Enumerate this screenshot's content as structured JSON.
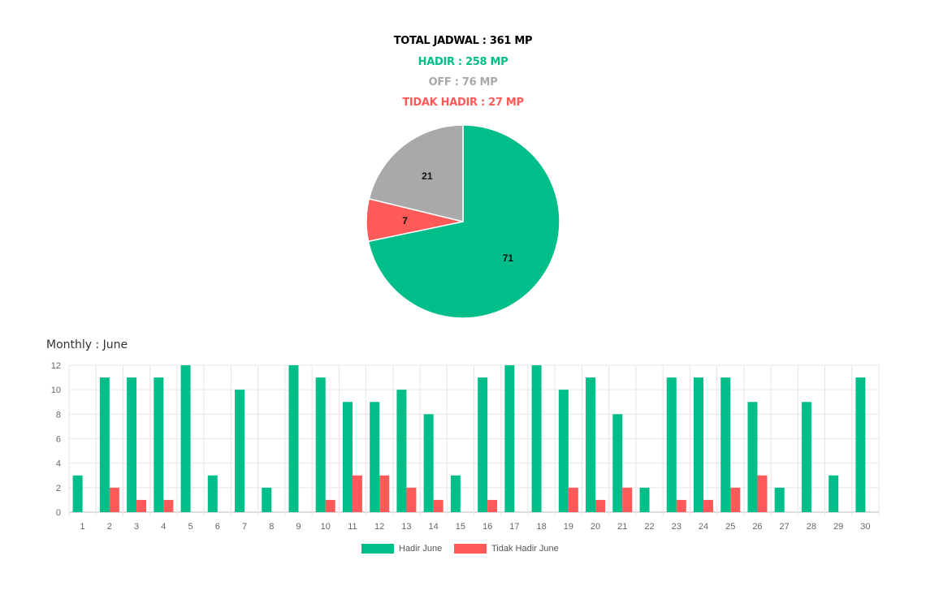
{
  "summary": {
    "total": "TOTAL JADWAL : 361 MP",
    "hadir": "HADIR : 258 MP",
    "off": "OFF : 76 MP",
    "tidak_hadir": "TIDAK HADIR : 27 MP"
  },
  "colors": {
    "total": "#000000",
    "hadir": "#00be8a",
    "off": "#a9a9a9",
    "tidak_hadir": "#ff5a5a"
  },
  "monthly_title": "Monthly : June",
  "chart_data": [
    {
      "type": "pie",
      "title": "",
      "slices": [
        {
          "label": "Hadir",
          "value": 71,
          "color": "#00be8a"
        },
        {
          "label": "Tidak Hadir",
          "value": 7,
          "color": "#ff5a5a"
        },
        {
          "label": "Off",
          "value": 21,
          "color": "#a9a9a9"
        }
      ]
    },
    {
      "type": "bar",
      "title": "Monthly : June",
      "categories": [
        "1",
        "2",
        "3",
        "4",
        "5",
        "6",
        "7",
        "8",
        "9",
        "10",
        "11",
        "12",
        "13",
        "14",
        "15",
        "16",
        "17",
        "18",
        "19",
        "20",
        "21",
        "22",
        "23",
        "24",
        "25",
        "26",
        "27",
        "28",
        "29",
        "30"
      ],
      "series": [
        {
          "name": "Hadir June",
          "color": "#00be8a",
          "values": [
            3,
            11,
            11,
            11,
            12,
            3,
            10,
            2,
            12,
            11,
            9,
            9,
            10,
            8,
            3,
            11,
            12,
            12,
            10,
            11,
            8,
            2,
            11,
            11,
            11,
            9,
            2,
            9,
            3,
            11
          ]
        },
        {
          "name": "Tidak Hadir June",
          "color": "#ff5a5a",
          "values": [
            0,
            2,
            1,
            1,
            0,
            0,
            0,
            0,
            0,
            1,
            3,
            3,
            2,
            1,
            0,
            1,
            0,
            0,
            2,
            1,
            2,
            0,
            1,
            1,
            2,
            3,
            0,
            0,
            0,
            0
          ]
        }
      ],
      "ylim": [
        0,
        12
      ],
      "yticks": [
        0,
        2,
        4,
        6,
        8,
        10,
        12
      ],
      "grid": true,
      "legend_position": "bottom"
    }
  ]
}
